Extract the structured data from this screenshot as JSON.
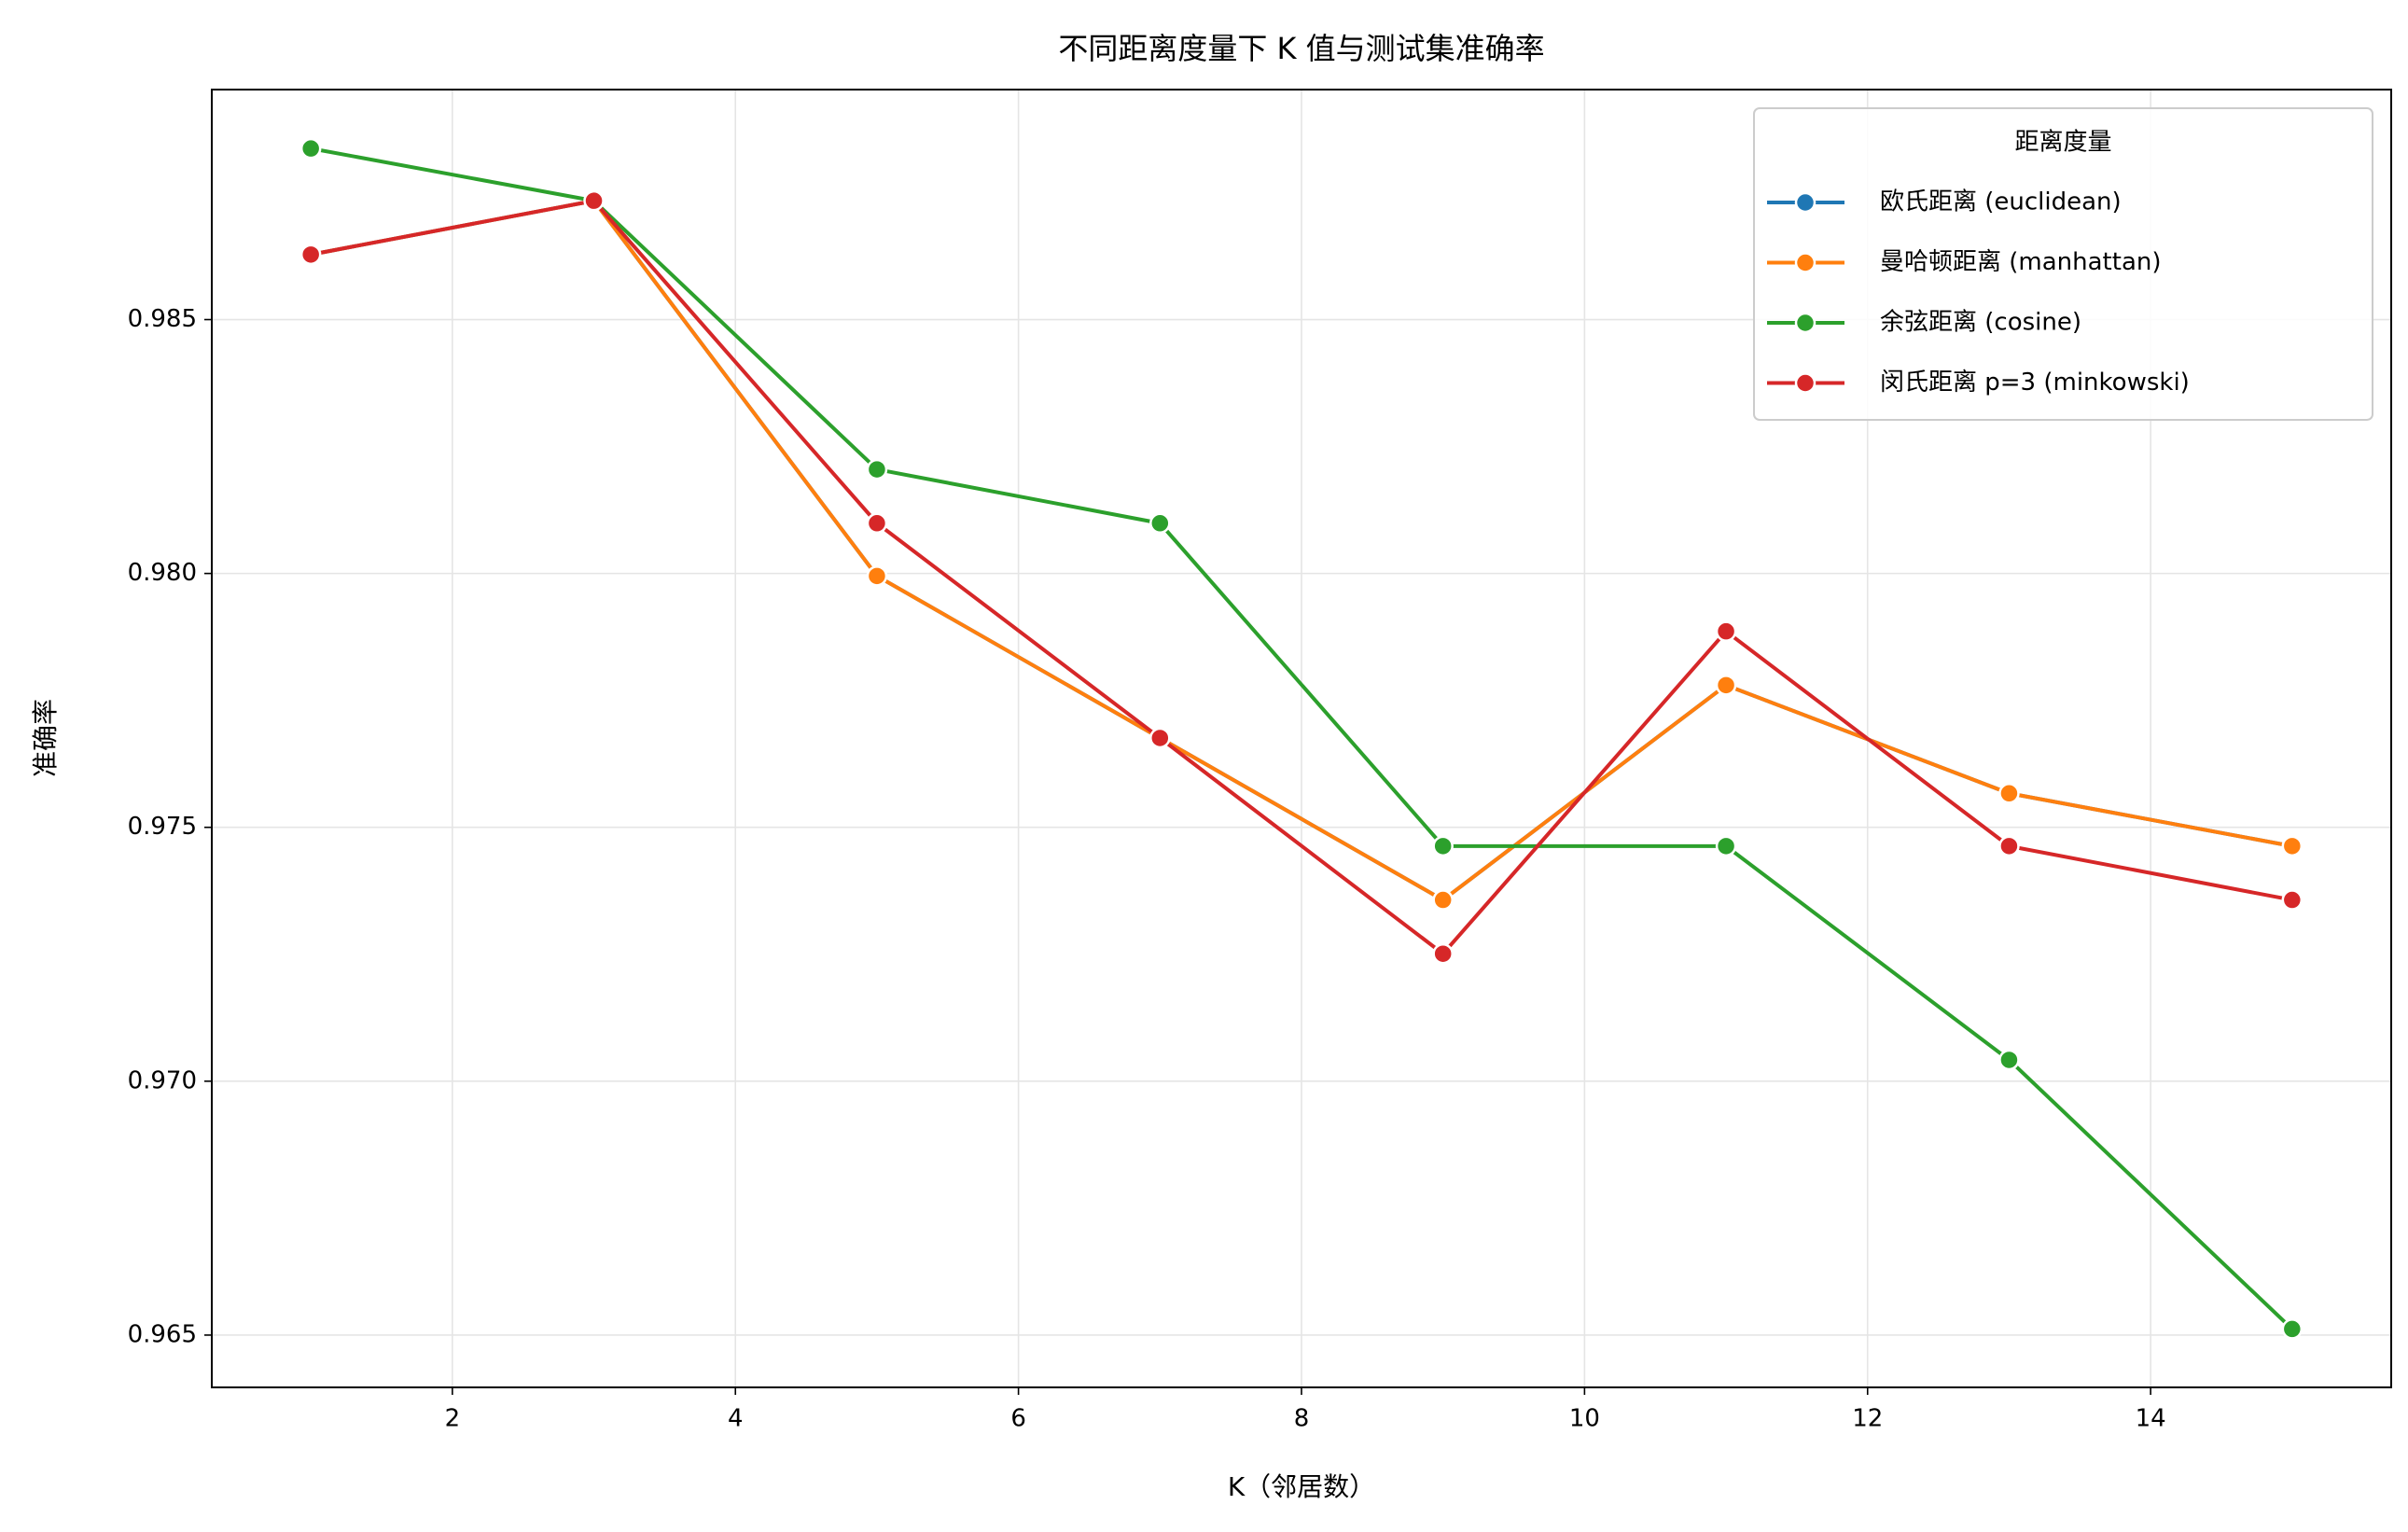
{
  "chart_data": {
    "type": "line",
    "title": "不同距离度量下 K 值与测试集准确率",
    "x_label": "K（邻居数）",
    "y_label": "准确率",
    "legend_title": "距离度量",
    "legend_position": "upper right",
    "grid": true,
    "x": [
      1,
      3,
      5,
      7,
      9,
      11,
      13,
      15
    ],
    "xlim": [
      0.3,
      15.7
    ],
    "xticks": [
      2,
      4,
      6,
      8,
      10,
      12,
      14
    ],
    "ylim": [
      0.96397,
      0.98953
    ],
    "yticks": [
      0.965,
      {
        "value": 0.97,
        "label": "0.970"
      },
      0.975,
      {
        "value": 0.98,
        "label": "0.980"
      },
      0.985
    ],
    "series": [
      {
        "name": "欧氏距离 (euclidean)",
        "color": "#1f77b4",
        "values": [
          0.98628,
          0.98734,
          0.97995,
          0.97676,
          0.97357,
          0.9778,
          0.97567,
          0.97463
        ]
      },
      {
        "name": "曼哈顿距离 (manhattan)",
        "color": "#ff7f0e",
        "values": [
          0.98628,
          0.98734,
          0.97995,
          0.97676,
          0.97357,
          0.9778,
          0.97567,
          0.97463
        ]
      },
      {
        "name": "余弦距离 (cosine)",
        "color": "#2ca02c",
        "values": [
          0.98837,
          0.98734,
          0.98205,
          0.98099,
          0.97463,
          0.97463,
          0.97042,
          0.96512
        ]
      },
      {
        "name": "闵氏距离 p=3 (minkowski)",
        "color": "#d62728",
        "values": [
          0.98628,
          0.98734,
          0.98099,
          0.97676,
          0.97251,
          0.97886,
          0.97463,
          0.97357
        ]
      }
    ]
  }
}
